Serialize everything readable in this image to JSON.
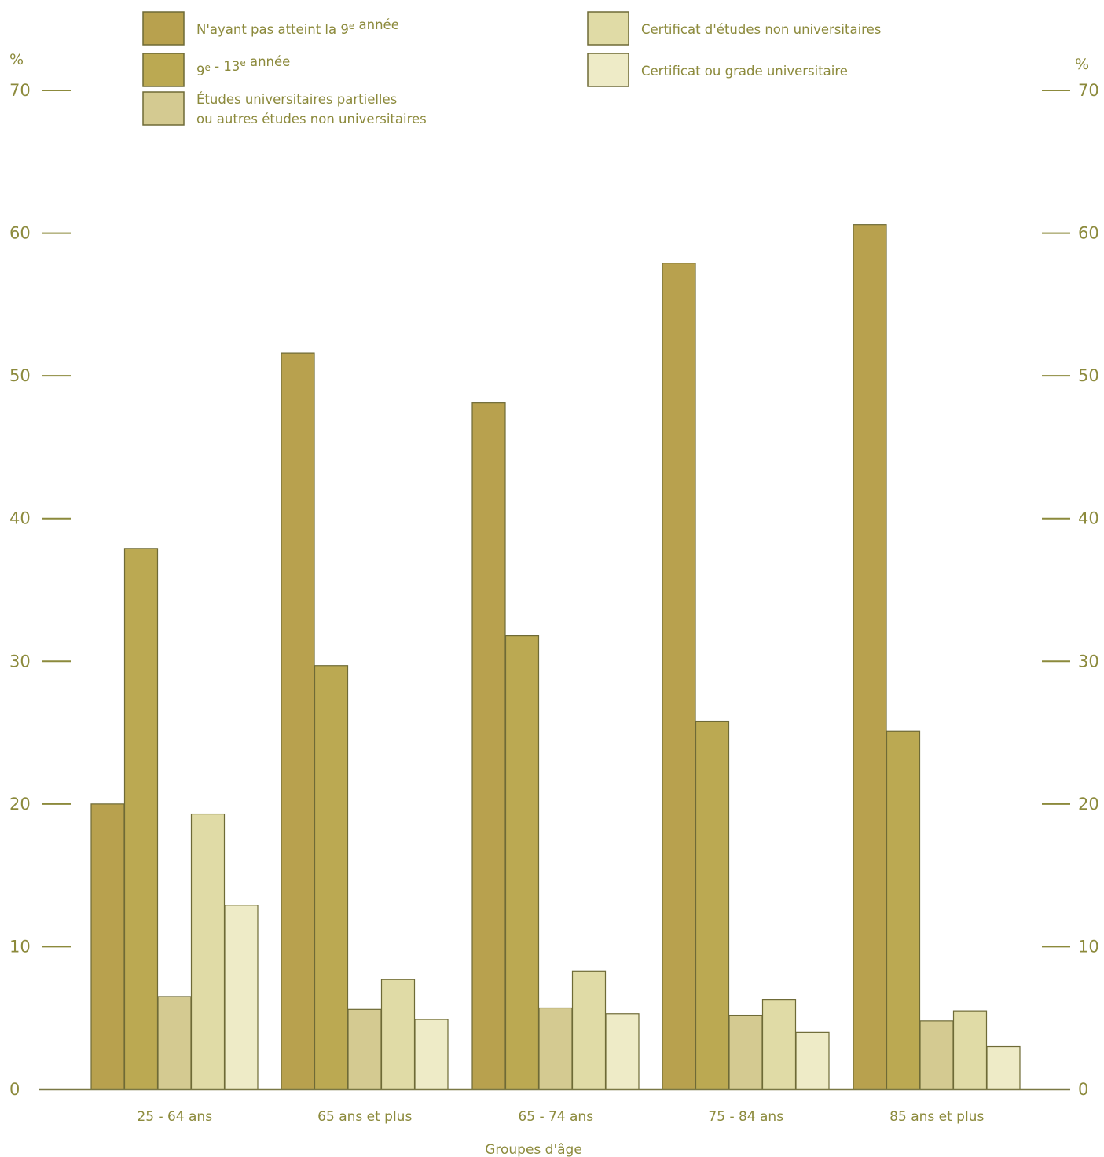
{
  "chart_data": {
    "type": "bar",
    "xlabel": "Groupes d'âge",
    "ylabel": "%",
    "ylim": [
      0,
      70
    ],
    "yticks": [
      0,
      10,
      20,
      30,
      40,
      50,
      60,
      70
    ],
    "grid": false,
    "legend_position": "top",
    "categories": [
      "25 - 64 ans",
      "65 ans et plus",
      "65 - 74 ans",
      "75 - 84 ans",
      "85 ans et plus"
    ],
    "series": [
      {
        "name": "N'ayant pas atteint la 9e année",
        "color": "#b8a14e",
        "values": [
          20.0,
          51.6,
          48.1,
          57.9,
          60.6
        ]
      },
      {
        "name": "9e - 13e année",
        "color": "#bba952",
        "values": [
          37.9,
          29.7,
          31.8,
          25.8,
          25.1
        ]
      },
      {
        "name": "Études universitaires partielles ou autres études non universitaires",
        "color": "#d4ca91",
        "values": [
          6.5,
          5.6,
          5.7,
          5.2,
          4.8
        ]
      },
      {
        "name": "Certificat d'études non universitaires",
        "color": "#e0dba6",
        "values": [
          19.3,
          7.7,
          8.3,
          6.3,
          5.5
        ]
      },
      {
        "name": "Certificat ou grade universitaire",
        "color": "#eeebc7",
        "values": [
          12.9,
          4.9,
          5.3,
          4.0,
          3.0
        ]
      }
    ]
  }
}
